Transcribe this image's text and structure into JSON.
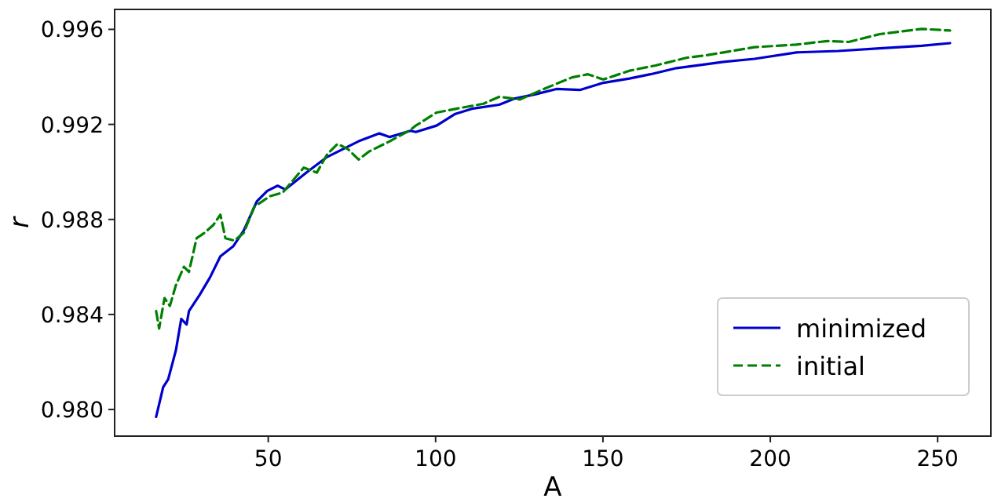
{
  "chart_data": {
    "type": "line",
    "xlabel": "A",
    "ylabel": "r",
    "xlim": [
      4.1,
      265.9
    ],
    "ylim": [
      0.97888,
      0.99684
    ],
    "xticks": [
      50,
      100,
      150,
      200,
      250
    ],
    "yticks": [
      {
        "value": 0.98,
        "label": "0.980"
      },
      0.984,
      0.988,
      0.992,
      0.996
    ],
    "grid": false,
    "legend": "bottom right",
    "series": [
      {
        "name": "minimized",
        "color": "#0000cc",
        "line_style": "solid",
        "x": [
          16.5,
          18.6,
          20.1,
          22.4,
          24.0,
          25.6,
          26.3,
          29.4,
          32.6,
          35.7,
          39.6,
          42.7,
          46.6,
          49.7,
          52.8,
          55.1,
          61.4,
          67.6,
          72.3,
          77.0,
          83.2,
          86.3,
          92.5,
          94.1,
          100.3,
          105.7,
          111.2,
          119.0,
          123.7,
          129.9,
          136.1,
          143.1,
          150.1,
          157.9,
          164.2,
          172.0,
          181.3,
          186.0,
          195.3,
          207.8,
          220.3,
          232.7,
          245.2,
          253.7
        ],
        "values": [
          0.97969,
          0.98094,
          0.98127,
          0.98249,
          0.98381,
          0.98358,
          0.98414,
          0.9848,
          0.98556,
          0.98645,
          0.98688,
          0.98754,
          0.98876,
          0.9892,
          0.98942,
          0.98926,
          0.98997,
          0.99063,
          0.99096,
          0.99129,
          0.99162,
          0.99147,
          0.99173,
          0.99168,
          0.99195,
          0.99243,
          0.99267,
          0.99283,
          0.99309,
          0.99327,
          0.99349,
          0.99345,
          0.99375,
          0.99393,
          0.99411,
          0.99437,
          0.99454,
          0.99463,
          0.99476,
          0.99503,
          0.99509,
          0.9952,
          0.99531,
          0.99542
        ]
      },
      {
        "name": "initial",
        "color": "#008000",
        "line_style": "dashed",
        "x": [
          16.5,
          17.4,
          19.0,
          20.6,
          22.4,
          24.8,
          26.3,
          28.6,
          31.0,
          33.6,
          35.7,
          37.2,
          39.9,
          42.7,
          45.8,
          50.5,
          54.3,
          60.6,
          64.5,
          67.6,
          70.7,
          73.8,
          77.0,
          80.0,
          86.3,
          92.5,
          94.1,
          100.3,
          106.5,
          114.3,
          119.0,
          125.2,
          133.0,
          140.8,
          145.5,
          150.1,
          157.9,
          165.7,
          175.1,
          181.3,
          186.0,
          195.3,
          207.8,
          217.1,
          223.4,
          232.7,
          245.2,
          253.7
        ],
        "values": [
          0.98414,
          0.98341,
          0.98469,
          0.98436,
          0.98523,
          0.98601,
          0.98579,
          0.98721,
          0.98744,
          0.98777,
          0.9882,
          0.98721,
          0.98711,
          0.98744,
          0.98853,
          0.98898,
          0.98913,
          0.99018,
          0.98997,
          0.99074,
          0.99118,
          0.99096,
          0.99052,
          0.99085,
          0.99129,
          0.99177,
          0.99195,
          0.9925,
          0.99267,
          0.99287,
          0.99316,
          0.99305,
          0.99353,
          0.99398,
          0.99411,
          0.99389,
          0.99426,
          0.99448,
          0.99481,
          0.99492,
          0.99503,
          0.99525,
          0.99536,
          0.99551,
          0.99547,
          0.9958,
          0.99602,
          0.99595
        ]
      }
    ]
  }
}
